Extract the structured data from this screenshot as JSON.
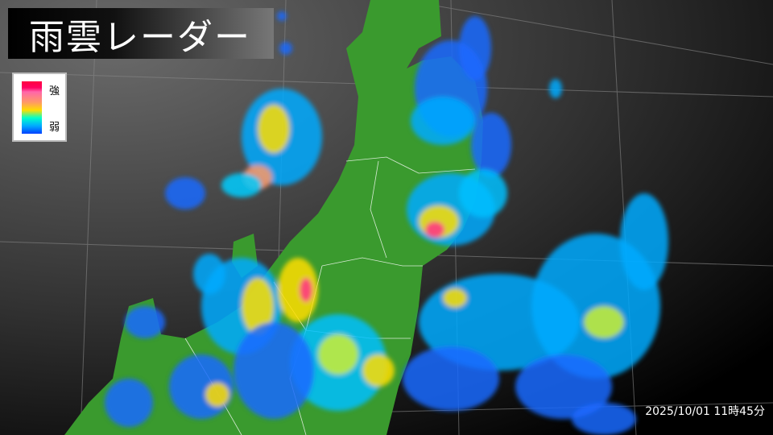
{
  "title": "雨雲レーダー",
  "legend": {
    "strong_label": "強",
    "weak_label": "弱",
    "colors": [
      "#ff0040",
      "#ff66aa",
      "#ff9966",
      "#ffdd00",
      "#00ffcc",
      "#00aaff",
      "#0040ff"
    ]
  },
  "timestamp": "2025/10/01 11時45分",
  "colors": {
    "land": "#3a9a2e",
    "sea_dark": "#000000",
    "sea_light": "#6a6a6a",
    "border": "#ffffff"
  }
}
